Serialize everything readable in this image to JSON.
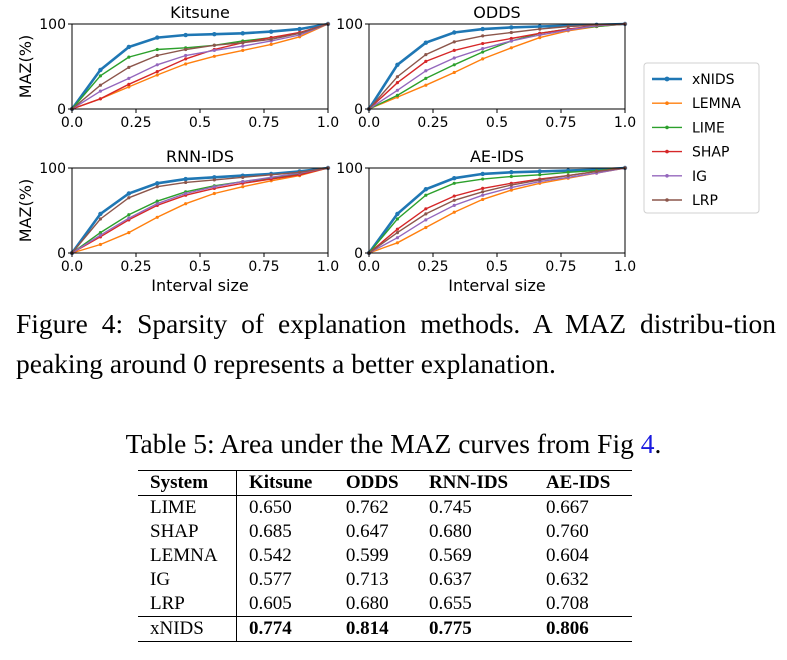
{
  "chart_data": {
    "type": "line",
    "x": [
      0.0,
      0.111,
      0.222,
      0.333,
      0.444,
      0.556,
      0.667,
      0.778,
      0.889,
      1.0
    ],
    "xticks": [
      "0.0",
      "0.25",
      "0.5",
      "0.75",
      "1.0"
    ],
    "yticks": [
      "0",
      "100"
    ],
    "xlim": [
      0,
      1
    ],
    "ylim": [
      0,
      100
    ],
    "ylabel": "MAZ(%)",
    "xlabel": "Interval size",
    "legend_position": "right",
    "colors": {
      "xNIDS": "#1f77b4",
      "LEMNA": "#ff7f0e",
      "LIME": "#2ca02c",
      "SHAP": "#d62728",
      "IG": "#9467bd",
      "LRP": "#8c564b"
    },
    "legend": [
      "xNIDS",
      "LEMNA",
      "LIME",
      "SHAP",
      "IG",
      "LRP"
    ],
    "panels": [
      {
        "title": "Kitsune",
        "series": [
          {
            "name": "xNIDS",
            "values": [
              0,
              46,
              73,
              84,
              87,
              88,
              89,
              91,
              94,
              100
            ]
          },
          {
            "name": "LEMNA",
            "values": [
              0,
              12,
              26,
              40,
              53,
              62,
              69,
              76,
              85,
              100
            ]
          },
          {
            "name": "LIME",
            "values": [
              0,
              39,
              61,
              70,
              72,
              75,
              80,
              84,
              89,
              100
            ]
          },
          {
            "name": "SHAP",
            "values": [
              0,
              12,
              29,
              44,
              59,
              70,
              78,
              84,
              90,
              100
            ]
          },
          {
            "name": "IG",
            "values": [
              0,
              21,
              36,
              52,
              63,
              69,
              74,
              80,
              87,
              100
            ]
          },
          {
            "name": "LRP",
            "values": [
              0,
              28,
              49,
              63,
              70,
              75,
              78,
              82,
              89,
              100
            ]
          }
        ]
      },
      {
        "title": "ODDS",
        "series": [
          {
            "name": "xNIDS",
            "values": [
              0,
              52,
              78,
              90,
              94,
              96,
              97,
              98,
              99,
              100
            ]
          },
          {
            "name": "LEMNA",
            "values": [
              0,
              14,
              28,
              43,
              59,
              72,
              84,
              92,
              97,
              100
            ]
          },
          {
            "name": "LIME",
            "values": [
              0,
              16,
              36,
              52,
              67,
              80,
              89,
              94,
              97,
              100
            ]
          },
          {
            "name": "SHAP",
            "values": [
              0,
              31,
              56,
              69,
              77,
              83,
              89,
              94,
              98,
              100
            ]
          },
          {
            "name": "IG",
            "values": [
              0,
              22,
              45,
              60,
              71,
              80,
              87,
              93,
              98,
              100
            ]
          },
          {
            "name": "LRP",
            "values": [
              0,
              38,
              64,
              79,
              86,
              90,
              94,
              97,
              99,
              100
            ]
          }
        ]
      },
      {
        "title": "RNN-IDS",
        "series": [
          {
            "name": "xNIDS",
            "values": [
              0,
              46,
              70,
              82,
              87,
              89,
              91,
              93,
              96,
              100
            ]
          },
          {
            "name": "LEMNA",
            "values": [
              0,
              10,
              24,
              42,
              58,
              70,
              78,
              85,
              91,
              100
            ]
          },
          {
            "name": "LIME",
            "values": [
              0,
              24,
              45,
              61,
              72,
              79,
              84,
              88,
              93,
              100
            ]
          },
          {
            "name": "SHAP",
            "values": [
              0,
              19,
              39,
              56,
              68,
              76,
              82,
              87,
              92,
              100
            ]
          },
          {
            "name": "IG",
            "values": [
              0,
              21,
              41,
              58,
              70,
              78,
              84,
              89,
              94,
              100
            ]
          },
          {
            "name": "LRP",
            "values": [
              0,
              40,
              65,
              78,
              83,
              86,
              89,
              92,
              95,
              100
            ]
          }
        ]
      },
      {
        "title": "AE-IDS",
        "series": [
          {
            "name": "xNIDS",
            "values": [
              0,
              46,
              75,
              88,
              93,
              95,
              96,
              97,
              98,
              100
            ]
          },
          {
            "name": "LEMNA",
            "values": [
              0,
              12,
              30,
              48,
              63,
              74,
              82,
              88,
              94,
              100
            ]
          },
          {
            "name": "LIME",
            "values": [
              0,
              40,
              68,
              82,
              87,
              90,
              92,
              95,
              97,
              100
            ]
          },
          {
            "name": "SHAP",
            "values": [
              0,
              28,
              52,
              67,
              76,
              82,
              87,
              91,
              96,
              100
            ]
          },
          {
            "name": "IG",
            "values": [
              0,
              18,
              39,
              56,
              68,
              77,
              84,
              89,
              94,
              100
            ]
          },
          {
            "name": "LRP",
            "values": [
              0,
              24,
              46,
              62,
              72,
              80,
              86,
              91,
              96,
              100
            ]
          }
        ]
      }
    ]
  },
  "figure_caption": {
    "prefix": "Figure 4: Sparsity of explanation methods. A MAZ distribu-tion peaking around 0 represents a better explanation."
  },
  "table": {
    "caption_text": "Table 5: Area under the MAZ curves from Fig ",
    "caption_ref": "4",
    "caption_end": ".",
    "headers": [
      "System",
      "Kitsune",
      "ODDS",
      "RNN-IDS",
      "AE-IDS"
    ],
    "rows": [
      [
        "LIME",
        "0.650",
        "0.762",
        "0.745",
        "0.667"
      ],
      [
        "SHAP",
        "0.685",
        "0.647",
        "0.680",
        "0.760"
      ],
      [
        "LEMNA",
        "0.542",
        "0.599",
        "0.569",
        "0.604"
      ],
      [
        "IG",
        "0.577",
        "0.713",
        "0.637",
        "0.632"
      ],
      [
        "LRP",
        "0.605",
        "0.680",
        "0.655",
        "0.708"
      ],
      [
        "xNIDS",
        "0.774",
        "0.814",
        "0.775",
        "0.806"
      ]
    ]
  }
}
